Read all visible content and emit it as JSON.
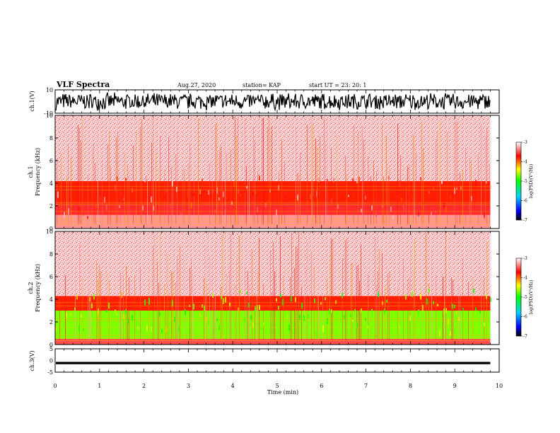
{
  "header": {
    "title": "VLF Spectra",
    "date": "Aug.27, 2020",
    "station": "station= KAP",
    "start": "start  UT  =   23: 20: 1"
  },
  "colors": {
    "waveform": "#000000",
    "colormap": [
      "#000000",
      "#0000ff",
      "#00d0ff",
      "#00ff00",
      "#ffff00",
      "#ff0000",
      "#ffffff"
    ]
  },
  "chart_data": [
    {
      "type": "line",
      "panel": "waveform-ch1",
      "ylabel": "ch.1(V)",
      "ylim": [
        -10,
        10
      ],
      "yticks": [
        "10",
        "-10"
      ],
      "x": [
        0,
        0.5,
        1,
        1.5,
        2,
        2.5,
        3,
        3.5,
        4,
        4.5,
        5,
        5.5,
        6,
        6.5,
        7,
        7.5,
        8,
        8.5,
        9,
        9.5,
        9.8
      ],
      "values": [
        6,
        -7,
        5,
        -8,
        7,
        -6,
        4,
        -9,
        6,
        -5,
        8,
        -7,
        5,
        -6,
        7,
        -8,
        6,
        -5,
        7,
        -6,
        4
      ],
      "envelope": [
        -8,
        8
      ]
    },
    {
      "type": "heatmap",
      "panel": "spectrogram-ch1",
      "ylabel": "ch.1",
      "ylabel2": "Frequency  (kHz)",
      "ylim": [
        0,
        10
      ],
      "yticks": [
        "0",
        "2",
        "4",
        "6",
        "8",
        "10"
      ],
      "xlim": [
        0,
        10
      ],
      "data_extent_min": 9.8,
      "colorbar": {
        "label": "log(PSD)(V²/Hz)",
        "range": [
          -7,
          -3
        ],
        "ticks": [
          "-3",
          "-4",
          "-5",
          "-6",
          "-7"
        ]
      },
      "levels_by_freq_khz": [
        {
          "f": [
            0,
            1.2
          ],
          "level": -3.3
        },
        {
          "f": [
            1.2,
            2.2
          ],
          "level": -3.6
        },
        {
          "f": [
            2.2,
            4.2
          ],
          "level": -3.8
        },
        {
          "f": [
            4.2,
            10
          ],
          "level": -3.1
        }
      ]
    },
    {
      "type": "heatmap",
      "panel": "spectrogram-ch2",
      "ylabel": "ch.2",
      "ylabel2": "Frequency  (kHz)",
      "ylim": [
        0,
        10
      ],
      "yticks": [
        "0",
        "2",
        "4",
        "6",
        "8",
        "10"
      ],
      "xlim": [
        0,
        10
      ],
      "data_extent_min": 9.8,
      "colorbar": {
        "label": "log(PSD)(V²/Hz)",
        "range": [
          -7,
          -3
        ],
        "ticks": [
          "-3",
          "-4",
          "-5",
          "-6",
          "-7"
        ]
      },
      "levels_by_freq_khz": [
        {
          "f": [
            0,
            0.5
          ],
          "level": -3.5
        },
        {
          "f": [
            0.5,
            3.0
          ],
          "level": -4.7
        },
        {
          "f": [
            3.0,
            4.3
          ],
          "level": -3.8
        },
        {
          "f": [
            4.3,
            10
          ],
          "level": -3.1
        }
      ]
    },
    {
      "type": "line",
      "panel": "waveform-ch3",
      "ylabel": "ch.3(V)",
      "ylim": [
        -5,
        5
      ],
      "yticks": [
        "5",
        "0",
        "-5"
      ],
      "level": -1,
      "band": [
        -1.6,
        -0.6
      ],
      "xlim": [
        0,
        9.8
      ]
    }
  ],
  "xaxis": {
    "label": "Time  (min)",
    "ticks": [
      "0",
      "1",
      "2",
      "3",
      "4",
      "5",
      "6",
      "7",
      "8",
      "9",
      "10"
    ],
    "range": [
      0,
      10
    ]
  }
}
